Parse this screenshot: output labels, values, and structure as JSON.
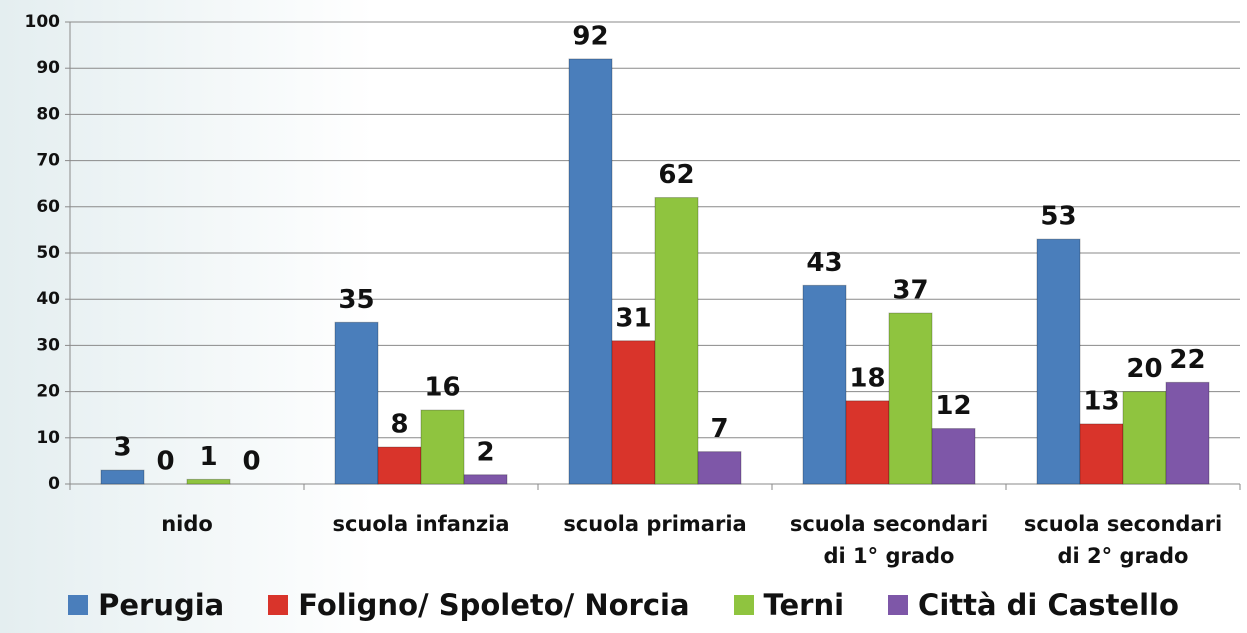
{
  "chart_data": {
    "type": "bar",
    "categories": [
      "nido",
      "scuola infanzia",
      "scuola primaria",
      "scuola secondari di 1° grado",
      "scuola secondari di 2° grado"
    ],
    "series": [
      {
        "name": "Perugia",
        "color": "#4a7ebb",
        "values": [
          3,
          35,
          92,
          43,
          53
        ]
      },
      {
        "name": "Foligno/ Spoleto/ Norcia",
        "color": "#d9342b",
        "values": [
          0,
          8,
          31,
          18,
          13
        ]
      },
      {
        "name": "Terni",
        "color": "#8fc43f",
        "values": [
          1,
          16,
          62,
          37,
          20
        ]
      },
      {
        "name": "Città di Castello",
        "color": "#7e57a8",
        "values": [
          0,
          2,
          7,
          12,
          22
        ]
      }
    ],
    "ylim": [
      0,
      100
    ],
    "yticks": [
      0,
      10,
      20,
      30,
      40,
      50,
      60,
      70,
      80,
      90,
      100
    ],
    "grid": true,
    "legend": "bottom"
  }
}
